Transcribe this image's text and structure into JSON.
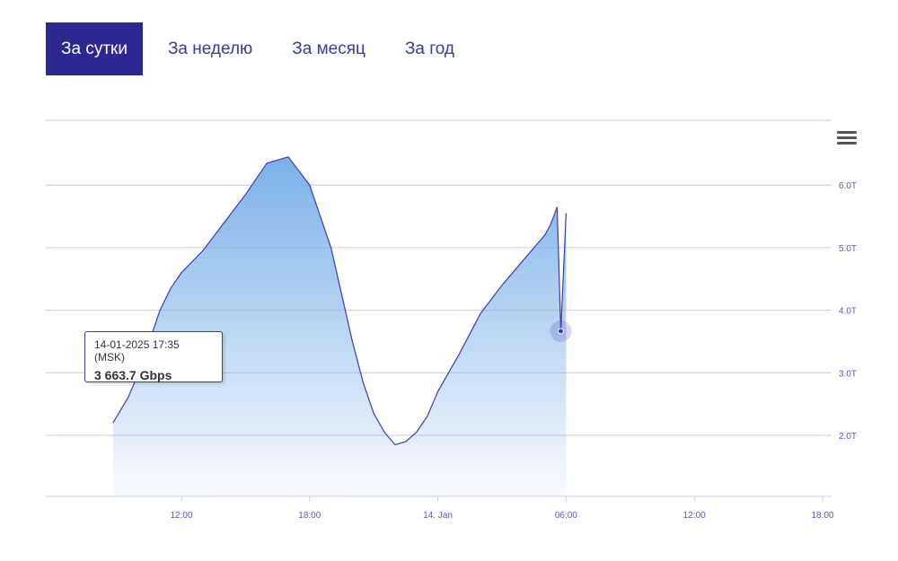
{
  "tabs": [
    {
      "label": "За сутки",
      "active": true
    },
    {
      "label": "За неделю",
      "active": false
    },
    {
      "label": "За месяц",
      "active": false
    },
    {
      "label": "За год",
      "active": false
    }
  ],
  "tooltip": {
    "date": "14-01-2025 17:35 (MSK)",
    "value": "3 663.7 Gbps"
  },
  "menu": {
    "icon": "hamburger-menu-icon"
  },
  "colors": {
    "accent": "#2b2890",
    "line": "#3f3aa6",
    "fill_top": "#7bb1e8",
    "grid": "#c8c6ee",
    "tick_text": "#5b58b2"
  },
  "chart_data": {
    "type": "area",
    "title": "",
    "xlabel": "",
    "ylabel": "",
    "unit": "Gbps",
    "x_ticks": [
      "12:00",
      "18:00",
      "14. Jan",
      "06:00",
      "12:00",
      "18:00"
    ],
    "y_ticks": [
      "2.0T",
      "3.0T",
      "4.0T",
      "5.0T",
      "6.0T"
    ],
    "ylim": [
      1000,
      7000
    ],
    "x_range_hours": [
      -3.2,
      18.2
    ],
    "grid": true,
    "legend": "none",
    "series": [
      {
        "x": [
          -3.2,
          -2.5,
          -2,
          -1.5,
          -1,
          -0.5,
          0,
          1,
          2,
          3,
          4,
          5,
          6,
          7,
          8,
          8.5,
          9,
          9.5,
          10,
          10.5,
          11,
          11.5,
          12,
          13,
          14,
          15,
          16,
          16.5,
          17,
          17.25,
          17.42,
          17.58,
          17.75,
          18.0
        ],
        "y": [
          2200,
          2600,
          3000,
          3500,
          4000,
          4350,
          4600,
          4950,
          5400,
          5850,
          6350,
          6450,
          6000,
          5000,
          3500,
          2850,
          2350,
          2050,
          1850,
          1900,
          2050,
          2300,
          2700,
          3300,
          3950,
          4400,
          4800,
          5000,
          5200,
          5350,
          5500,
          5650,
          3663.7,
          5550
        ]
      }
    ]
  }
}
